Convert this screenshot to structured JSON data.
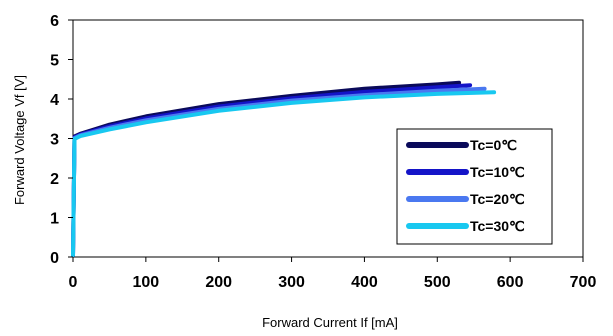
{
  "chart_data": {
    "type": "line",
    "title": "",
    "xlabel": "Forward Current If [mA]",
    "ylabel": "Forward Voltage Vf [V]",
    "xlim": [
      0,
      700
    ],
    "ylim": [
      0,
      6
    ],
    "xticks": [
      0,
      100,
      200,
      300,
      400,
      500,
      600,
      700
    ],
    "yticks": [
      0,
      1,
      2,
      3,
      4,
      5,
      6
    ],
    "grid": false,
    "legend_position": "bottom-right",
    "series": [
      {
        "name": "Tc=0℃",
        "color": "#0a0a5a",
        "points": [
          [
            0,
            0.05
          ],
          [
            2,
            3.05
          ],
          [
            10,
            3.12
          ],
          [
            50,
            3.35
          ],
          [
            100,
            3.56
          ],
          [
            200,
            3.87
          ],
          [
            300,
            4.08
          ],
          [
            400,
            4.26
          ],
          [
            500,
            4.37
          ],
          [
            530,
            4.41
          ]
        ]
      },
      {
        "name": "Tc=10℃",
        "color": "#1414c8",
        "points": [
          [
            0,
            0.05
          ],
          [
            2,
            3.03
          ],
          [
            10,
            3.1
          ],
          [
            50,
            3.31
          ],
          [
            100,
            3.51
          ],
          [
            200,
            3.81
          ],
          [
            300,
            4.02
          ],
          [
            400,
            4.18
          ],
          [
            500,
            4.3
          ],
          [
            545,
            4.35
          ]
        ]
      },
      {
        "name": "Tc=20℃",
        "color": "#4a78f0",
        "points": [
          [
            0,
            0.05
          ],
          [
            2,
            3.01
          ],
          [
            10,
            3.08
          ],
          [
            50,
            3.27
          ],
          [
            100,
            3.46
          ],
          [
            200,
            3.75
          ],
          [
            300,
            3.96
          ],
          [
            400,
            4.1
          ],
          [
            500,
            4.21
          ],
          [
            565,
            4.26
          ]
        ]
      },
      {
        "name": "Tc=30℃",
        "color": "#18c8f0",
        "points": [
          [
            0,
            0.05
          ],
          [
            2,
            2.99
          ],
          [
            10,
            3.06
          ],
          [
            50,
            3.23
          ],
          [
            100,
            3.41
          ],
          [
            200,
            3.7
          ],
          [
            300,
            3.9
          ],
          [
            400,
            4.04
          ],
          [
            500,
            4.13
          ],
          [
            578,
            4.17
          ]
        ]
      }
    ]
  }
}
